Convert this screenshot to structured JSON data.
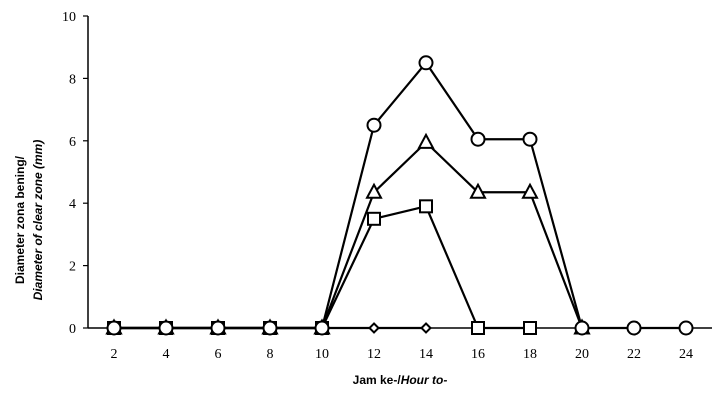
{
  "chart_data": {
    "type": "line",
    "xlabel_part1": "Jam ke-/",
    "xlabel_part2": "Hour to-",
    "ylabel_line1": "Diameter zona bening/",
    "ylabel_line2_italic": "Diameter of clear zone",
    "ylabel_line2_unit": " (mm)",
    "x": [
      2,
      4,
      6,
      8,
      10,
      12,
      14,
      16,
      18,
      20,
      22,
      24
    ],
    "x_ticks": [
      "2",
      "4",
      "6",
      "8",
      "10",
      "12",
      "14",
      "16",
      "18",
      "20",
      "22",
      "24"
    ],
    "y_ticks": [
      "0",
      "2",
      "4",
      "6",
      "8",
      "10"
    ],
    "ylim": [
      0,
      10
    ],
    "xlim": [
      1,
      25
    ],
    "grid": false,
    "legend": "none",
    "series": [
      {
        "marker": "diamond",
        "values": [
          0,
          0,
          0,
          0,
          0,
          0,
          0,
          null,
          null,
          null,
          null,
          null
        ]
      },
      {
        "marker": "square",
        "values": [
          0,
          0,
          0,
          0,
          0,
          3.5,
          3.9,
          0,
          0,
          null,
          null,
          null
        ]
      },
      {
        "marker": "triangle",
        "values": [
          0,
          0,
          0,
          0,
          0,
          4.35,
          5.95,
          4.35,
          4.35,
          0,
          null,
          null
        ]
      },
      {
        "marker": "circle",
        "values": [
          0,
          0,
          0,
          0,
          0,
          6.5,
          8.5,
          6.05,
          6.05,
          0,
          0,
          0
        ]
      }
    ]
  }
}
